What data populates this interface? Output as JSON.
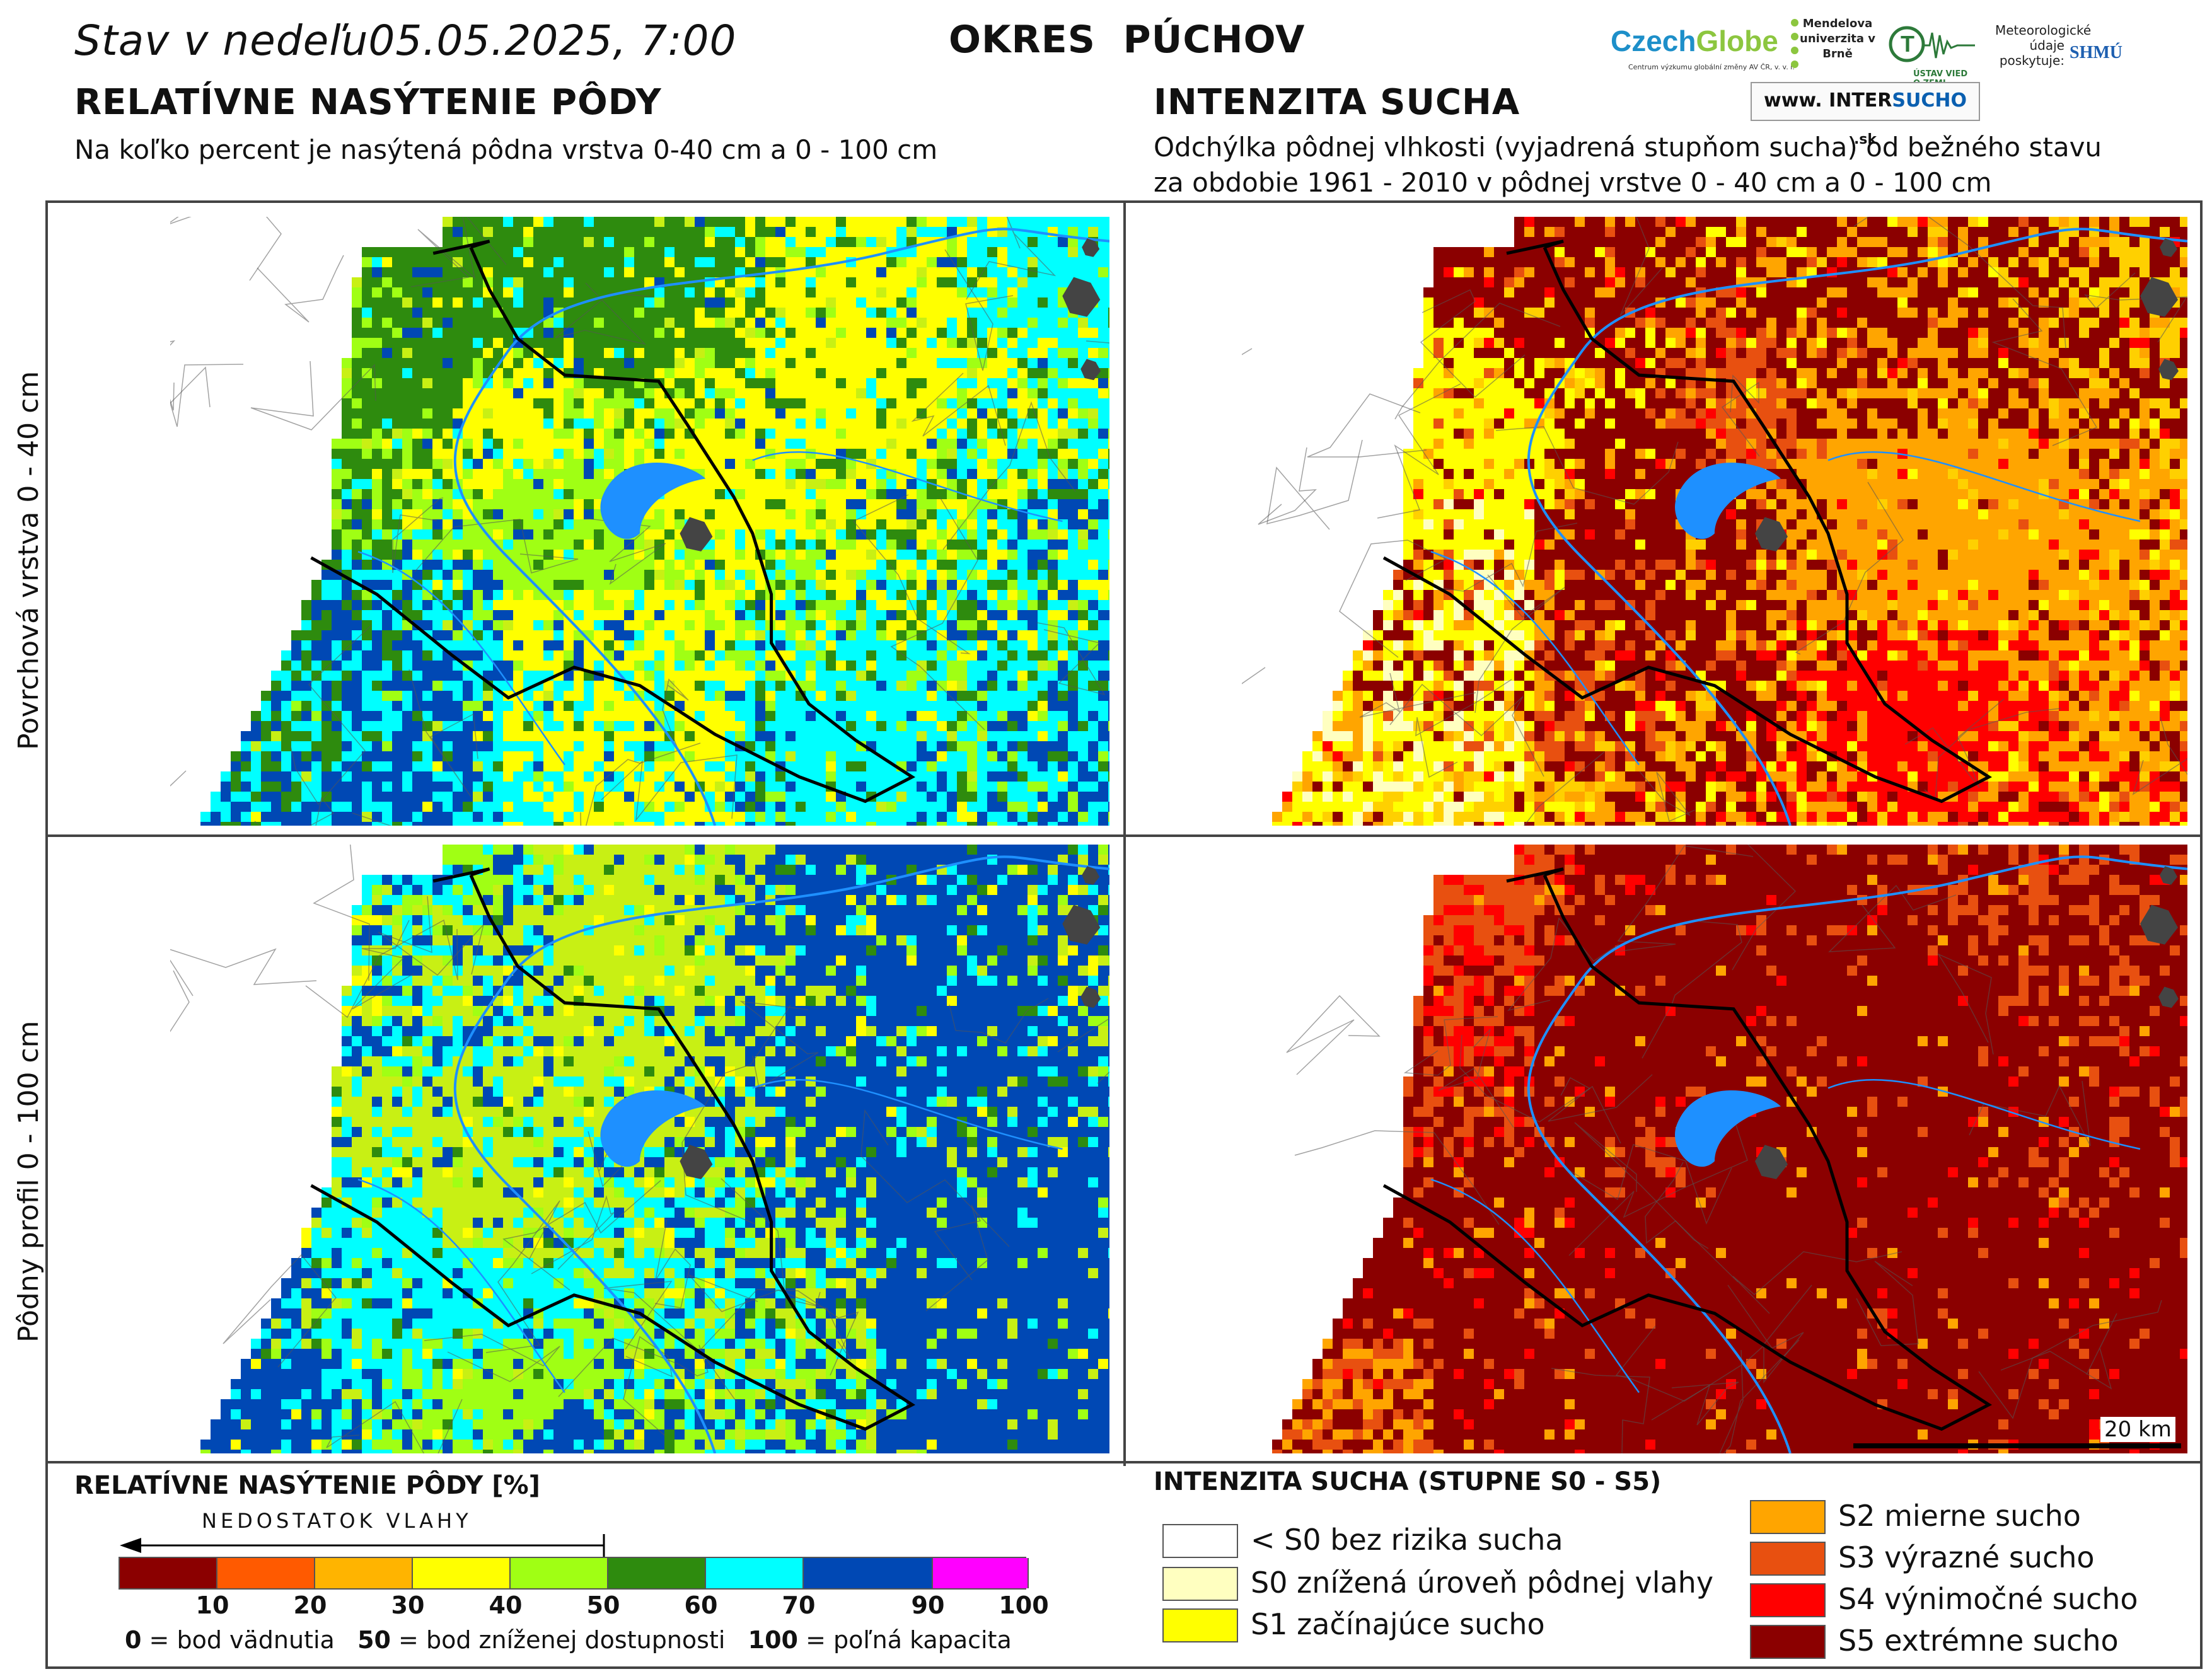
{
  "header": {
    "date_prefix": "Stav v nedeľu",
    "date": "05.05.2025, 7:00",
    "region": "OKRES  PÚCHOV"
  },
  "logos": {
    "czechglobe_a": "Czech",
    "czechglobe_b": "Globe",
    "czechglobe_sub": "Centrum výzkumu globální změny AV ČR, v. v. i.",
    "mendel": "Mendelova univerzita v Brně",
    "uvz": "ÚSTAV VIED O ZEMI",
    "met_label": "Meteorologické údaje poskytuje:",
    "shmu": "SHMÚ",
    "intersucho_a": "www. INTER",
    "intersucho_b": "SUCHO",
    "intersucho_c": " .sk"
  },
  "left_section": {
    "title": "RELATÍVNE NASÝTENIE PÔDY",
    "subtitle": "Na koľko percent je nasýtená pôdna vrstva 0-40 cm a 0 - 100 cm"
  },
  "right_section": {
    "title": "INTENZITA SUCHA",
    "subtitle_1": "Odchýlka pôdnej vlhkosti (vyjadrená stupňom sucha) od bežného stavu",
    "subtitle_2": "za obdobie 1961 - 2010 v pôdnej vrstve 0 - 40 cm a 0 - 100 cm"
  },
  "rows": {
    "top": "Povrchová vrstva 0 - 40 cm",
    "bottom": "Pôdny profil 0 - 100 cm"
  },
  "scale_label": "20 km",
  "saturation_legend": {
    "title": "RELATÍVNE NASÝTENIE PÔDY [%]",
    "arrow_label": "NEDOSTATOK VLAHY",
    "colors": [
      "#8b0000",
      "#ff5a00",
      "#ffb400",
      "#ffff00",
      "#a0ff14",
      "#2e8b0e",
      "#00ffff",
      "#0048b4",
      "#ff00ff"
    ],
    "ticks": [
      "10",
      "20",
      "30",
      "40",
      "50",
      "60",
      "70",
      "90",
      "100"
    ],
    "footnote_0_num": "0",
    "footnote_0_text": " = bod vädnutia",
    "footnote_50_num": "50",
    "footnote_50_text": " = bod zníženej dostupnosti",
    "footnote_100_num": "100",
    "footnote_100_text": " = poľná kapacita"
  },
  "drought_legend": {
    "title": "INTENZITA SUCHA (STUPNE S0 - S5)",
    "items": [
      {
        "label": "< S0 bez rizika sucha",
        "color": "#ffffff"
      },
      {
        "label": "S0 znížená úroveň pôdnej vlahy",
        "color": "#ffffc0"
      },
      {
        "label": "S1 začínajúce sucho",
        "color": "#ffff00"
      },
      {
        "label": "S2 mierne sucho",
        "color": "#ffa500"
      },
      {
        "label": "S3 výrazné sucho",
        "color": "#e85010"
      },
      {
        "label": "S4 výnimočné sucho",
        "color": "#ff0000"
      },
      {
        "label": "S5 extrémne sucho",
        "color": "#8b0000"
      }
    ]
  },
  "maps": {
    "top_left_palette": [
      "#2e8b0e",
      "#2e8b0e",
      "#a0ff14",
      "#a0ff14",
      "#c8f014",
      "#ffff00",
      "#00ffff",
      "#00ffff",
      "#0048b4"
    ],
    "bottom_left_palette": [
      "#00ffff",
      "#00ffff",
      "#2e8b0e",
      "#a0ff14",
      "#ffff00",
      "#0048b4",
      "#0048b4",
      "#c8f014"
    ],
    "top_right_palette": [
      "#ffa500",
      "#ffa500",
      "#ffa500",
      "#ffd000",
      "#ffff00",
      "#ff0000",
      "#e85010",
      "#8b0000"
    ],
    "bottom_right_palette": [
      "#8b0000",
      "#8b0000",
      "#8b0000",
      "#e85010",
      "#ff0000",
      "#ffa500"
    ],
    "river_color": "#1e90ff",
    "town_color": "#444444"
  }
}
